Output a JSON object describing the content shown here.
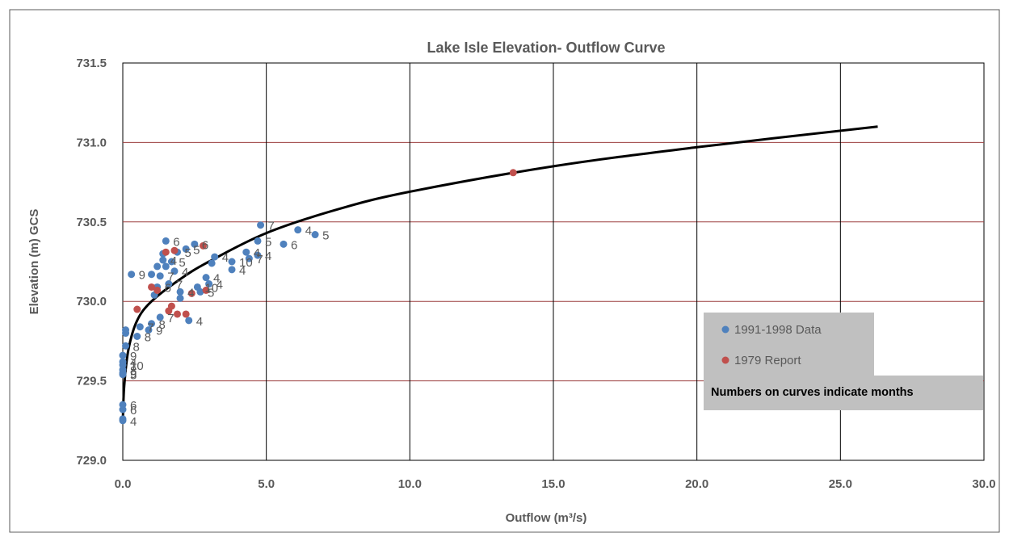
{
  "chart_data": {
    "type": "scatter",
    "title": "Lake Isle Elevation- Outflow Curve",
    "xlabel": "Outflow (m³/s)",
    "ylabel": "Elevation (m) GCS",
    "xlim": [
      0,
      30
    ],
    "ylim": [
      729.0,
      731.5
    ],
    "x_ticks": [
      "0.0",
      "5.0",
      "10.0",
      "15.0",
      "20.0",
      "25.0",
      "30.0"
    ],
    "y_ticks": [
      "729.0",
      "729.5",
      "730.0",
      "730.5",
      "731.0",
      "731.5"
    ],
    "x_tick_values": [
      0,
      5,
      10,
      15,
      20,
      25,
      30
    ],
    "y_tick_values": [
      729.0,
      729.5,
      730.0,
      730.5,
      731.0,
      731.5
    ],
    "grid": {
      "vertical": true,
      "horizontal": true,
      "vertical_color": "#000000",
      "horizontal_color": "#9c3f3f"
    },
    "legend_placement": "bottom-right",
    "note": "Numbers on curves indicate months",
    "series": [
      {
        "name": "1991-1998 Data",
        "color": "#4f81bd",
        "points": [
          {
            "x": 0.0,
            "y": 729.25,
            "label": "4"
          },
          {
            "x": 0.0,
            "y": 729.26,
            "label": ""
          },
          {
            "x": 0.0,
            "y": 729.32,
            "label": "6"
          },
          {
            "x": 0.0,
            "y": 729.35,
            "label": "6"
          },
          {
            "x": 0.0,
            "y": 729.54,
            "label": "5"
          },
          {
            "x": 0.0,
            "y": 729.55,
            "label": "9"
          },
          {
            "x": 0.0,
            "y": 729.57,
            "label": "8"
          },
          {
            "x": 0.0,
            "y": 729.6,
            "label": "10"
          },
          {
            "x": 0.0,
            "y": 729.62,
            "label": "4"
          },
          {
            "x": 0.0,
            "y": 729.66,
            "label": "9"
          },
          {
            "x": 0.1,
            "y": 729.72,
            "label": "8"
          },
          {
            "x": 0.1,
            "y": 729.8,
            "label": ""
          },
          {
            "x": 0.1,
            "y": 729.82,
            "label": ""
          },
          {
            "x": 0.3,
            "y": 730.17,
            "label": "9"
          },
          {
            "x": 0.5,
            "y": 729.78,
            "label": "8"
          },
          {
            "x": 0.6,
            "y": 729.84,
            "label": "7"
          },
          {
            "x": 0.9,
            "y": 729.82,
            "label": "9"
          },
          {
            "x": 1.0,
            "y": 729.86,
            "label": "8"
          },
          {
            "x": 1.0,
            "y": 730.17,
            "label": ""
          },
          {
            "x": 1.1,
            "y": 730.04,
            "label": ""
          },
          {
            "x": 1.2,
            "y": 730.09,
            "label": "6"
          },
          {
            "x": 1.2,
            "y": 730.22,
            "label": ""
          },
          {
            "x": 1.3,
            "y": 730.16,
            "label": "7"
          },
          {
            "x": 1.3,
            "y": 729.9,
            "label": "7"
          },
          {
            "x": 1.4,
            "y": 730.26,
            "label": "4"
          },
          {
            "x": 1.4,
            "y": 730.3,
            "label": ""
          },
          {
            "x": 1.5,
            "y": 730.38,
            "label": "6"
          },
          {
            "x": 1.5,
            "y": 730.22,
            "label": ""
          },
          {
            "x": 1.6,
            "y": 730.11,
            "label": "7"
          },
          {
            "x": 1.7,
            "y": 730.25,
            "label": "5"
          },
          {
            "x": 1.8,
            "y": 730.19,
            "label": "4"
          },
          {
            "x": 1.9,
            "y": 730.31,
            "label": "5"
          },
          {
            "x": 2.0,
            "y": 730.06,
            "label": "4"
          },
          {
            "x": 2.0,
            "y": 730.02,
            "label": ""
          },
          {
            "x": 2.2,
            "y": 730.33,
            "label": "5"
          },
          {
            "x": 2.3,
            "y": 729.88,
            "label": "4"
          },
          {
            "x": 2.5,
            "y": 730.36,
            "label": "6"
          },
          {
            "x": 2.6,
            "y": 730.09,
            "label": "10"
          },
          {
            "x": 2.7,
            "y": 730.06,
            "label": "5"
          },
          {
            "x": 2.9,
            "y": 730.15,
            "label": "4"
          },
          {
            "x": 3.0,
            "y": 730.11,
            "label": "4"
          },
          {
            "x": 3.1,
            "y": 730.24,
            "label": ""
          },
          {
            "x": 3.2,
            "y": 730.28,
            "label": "4"
          },
          {
            "x": 3.8,
            "y": 730.25,
            "label": "10"
          },
          {
            "x": 3.8,
            "y": 730.2,
            "label": "4"
          },
          {
            "x": 4.3,
            "y": 730.31,
            "label": "4"
          },
          {
            "x": 4.4,
            "y": 730.27,
            "label": "7"
          },
          {
            "x": 4.7,
            "y": 730.38,
            "label": "5"
          },
          {
            "x": 4.7,
            "y": 730.29,
            "label": "4"
          },
          {
            "x": 4.8,
            "y": 730.48,
            "label": "7"
          },
          {
            "x": 5.6,
            "y": 730.36,
            "label": "6"
          },
          {
            "x": 6.1,
            "y": 730.45,
            "label": "4"
          },
          {
            "x": 6.7,
            "y": 730.42,
            "label": "5"
          }
        ]
      },
      {
        "name": "1979 Report",
        "color": "#c0504d",
        "points": [
          {
            "x": 0.5,
            "y": 729.95,
            "label": ""
          },
          {
            "x": 1.0,
            "y": 730.09,
            "label": ""
          },
          {
            "x": 1.2,
            "y": 730.07,
            "label": ""
          },
          {
            "x": 1.5,
            "y": 730.31,
            "label": ""
          },
          {
            "x": 1.6,
            "y": 729.94,
            "label": ""
          },
          {
            "x": 1.7,
            "y": 729.97,
            "label": ""
          },
          {
            "x": 1.8,
            "y": 730.32,
            "label": ""
          },
          {
            "x": 1.9,
            "y": 729.92,
            "label": ""
          },
          {
            "x": 2.2,
            "y": 729.92,
            "label": ""
          },
          {
            "x": 2.4,
            "y": 730.05,
            "label": ""
          },
          {
            "x": 2.8,
            "y": 730.35,
            "label": ""
          },
          {
            "x": 2.9,
            "y": 730.07,
            "label": ""
          },
          {
            "x": 13.6,
            "y": 730.81,
            "label": ""
          }
        ]
      }
    ],
    "fit_curve": {
      "color": "#000000",
      "points": [
        {
          "x": 0.0,
          "y": 729.24
        },
        {
          "x": 0.05,
          "y": 729.47
        },
        {
          "x": 0.2,
          "y": 729.7
        },
        {
          "x": 0.5,
          "y": 729.88
        },
        {
          "x": 1.0,
          "y": 730.0
        },
        {
          "x": 2.0,
          "y": 730.14
        },
        {
          "x": 3.0,
          "y": 730.25
        },
        {
          "x": 5.0,
          "y": 730.43
        },
        {
          "x": 7.5,
          "y": 730.58
        },
        {
          "x": 10.0,
          "y": 730.69
        },
        {
          "x": 15.0,
          "y": 730.85
        },
        {
          "x": 20.0,
          "y": 730.97
        },
        {
          "x": 26.3,
          "y": 731.1
        }
      ]
    }
  }
}
